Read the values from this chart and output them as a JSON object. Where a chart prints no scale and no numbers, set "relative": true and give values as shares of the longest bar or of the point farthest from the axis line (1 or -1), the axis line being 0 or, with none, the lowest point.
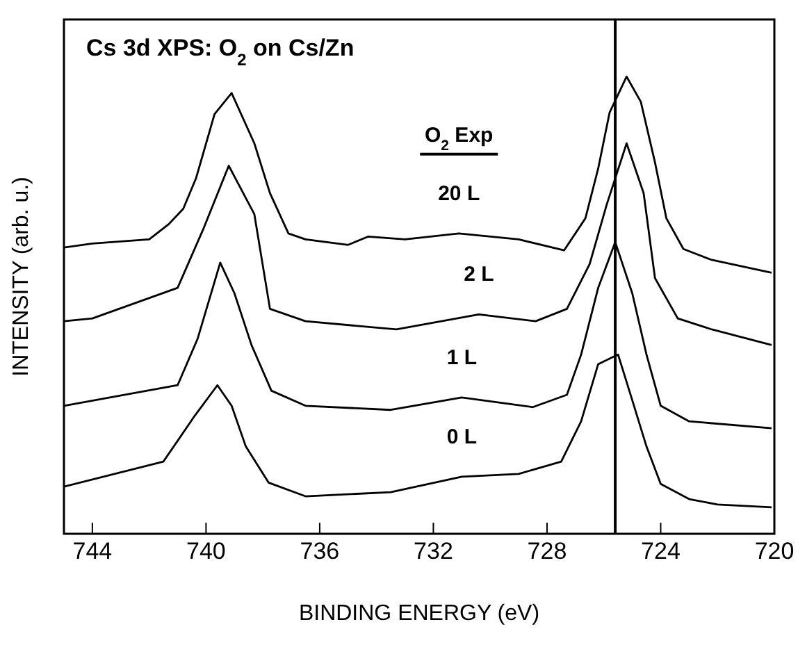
{
  "chart_data": {
    "type": "line",
    "title": "Cs 3d XPS: O$_{2}$ on Cs/Zn",
    "xlabel": "BINDING ENERGY (eV)",
    "ylabel": "INTENSITY (arb. u.)",
    "legend_title": "O$_{2}$ Exp",
    "relative": true,
    "xlim": [
      745,
      720
    ],
    "xticks": [
      744,
      740,
      736,
      732,
      728,
      724,
      720
    ],
    "marker": "none",
    "line_style": "solid",
    "grid": false,
    "legend": false,
    "ref_lines": [
      {
        "axis": "x",
        "value": 725.6,
        "color": "#000000"
      }
    ],
    "series": [
      {
        "name": "20 L",
        "color": "#000000",
        "x": [
          745,
          744,
          742,
          741.3,
          740.8,
          740.35,
          739.7,
          739.1,
          738.3,
          737.75,
          737.1,
          736.5,
          735,
          734.3,
          733,
          731.1,
          729,
          727.4,
          726.65,
          726.2,
          725.8,
          725.2,
          724.7,
          724.2,
          723.8,
          723.2,
          722.2,
          720.1
        ],
        "values": [
          0.626,
          0.635,
          0.644,
          0.678,
          0.711,
          0.778,
          0.918,
          0.964,
          0.854,
          0.745,
          0.657,
          0.644,
          0.632,
          0.65,
          0.644,
          0.657,
          0.644,
          0.62,
          0.69,
          0.799,
          0.921,
          1,
          0.945,
          0.812,
          0.69,
          0.623,
          0.599,
          0.571
        ]
      },
      {
        "name": "2 L",
        "color": "#000000",
        "x": [
          745,
          744,
          741,
          740.1,
          739.2,
          738.3,
          737.75,
          736.5,
          733.3,
          730.4,
          728.4,
          727.3,
          726.5,
          725.9,
          725.2,
          724.6,
          724.2,
          723.4,
          722.2,
          720.1
        ],
        "values": [
          0.465,
          0.471,
          0.538,
          0.666,
          0.805,
          0.699,
          0.492,
          0.465,
          0.447,
          0.48,
          0.465,
          0.492,
          0.59,
          0.72,
          0.854,
          0.745,
          0.559,
          0.471,
          0.447,
          0.413
        ]
      },
      {
        "name": "1 L",
        "color": "#000000",
        "x": [
          745,
          741,
          740.3,
          739.5,
          739,
          738.4,
          737.7,
          736.5,
          733.5,
          731,
          728.5,
          727.3,
          726.8,
          726.2,
          725.6,
          725,
          724.5,
          724,
          723,
          720.1
        ],
        "values": [
          0.28,
          0.325,
          0.426,
          0.593,
          0.526,
          0.413,
          0.313,
          0.28,
          0.271,
          0.298,
          0.277,
          0.304,
          0.392,
          0.538,
          0.638,
          0.526,
          0.392,
          0.28,
          0.246,
          0.231
        ]
      },
      {
        "name": "0 L",
        "color": "#000000",
        "x": [
          745,
          741.5,
          740.4,
          739.6,
          739.1,
          738.6,
          737.8,
          736.5,
          733.5,
          731,
          729,
          727.5,
          726.8,
          726.2,
          725.7,
          725.5,
          725,
          724.5,
          724,
          723,
          722,
          720.1
        ],
        "values": [
          0.103,
          0.158,
          0.258,
          0.325,
          0.28,
          0.191,
          0.112,
          0.082,
          0.091,
          0.125,
          0.131,
          0.158,
          0.246,
          0.371,
          0.386,
          0.392,
          0.292,
          0.191,
          0.109,
          0.076,
          0.064,
          0.058
        ]
      }
    ]
  }
}
